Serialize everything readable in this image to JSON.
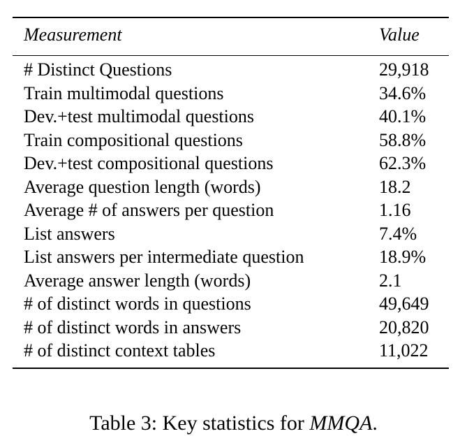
{
  "table": {
    "header": [
      "Measurement",
      "Value"
    ],
    "rows": [
      [
        "# Distinct Questions",
        "29,918"
      ],
      [
        "Train multimodal questions",
        "34.6%"
      ],
      [
        "Dev.+test multimodal questions",
        "40.1%"
      ],
      [
        "Train compositional questions",
        "58.8%"
      ],
      [
        "Dev.+test compositional questions",
        "62.3%"
      ],
      [
        "Average question length (words)",
        "18.2"
      ],
      [
        "Average # of answers per question",
        "1.16"
      ],
      [
        "List answers",
        "7.4%"
      ],
      [
        "List answers per intermediate question",
        "18.9%"
      ],
      [
        "Average answer length (words)",
        "2.1"
      ],
      [
        "# of distinct words in questions",
        "49,649"
      ],
      [
        "# of distinct words in answers",
        "20,820"
      ],
      [
        "# of distinct context tables",
        "11,022"
      ]
    ]
  },
  "caption": {
    "label": "Table 3:",
    "text": "Key statistics for",
    "emphasis": "MMQA",
    "end": "."
  }
}
